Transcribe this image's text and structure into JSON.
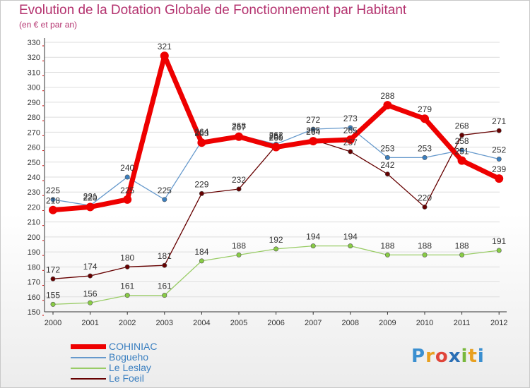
{
  "header": {
    "title": "Evolution de la Dotation Globale de Fonctionnement par Habitant",
    "subtitle": "(en € et par an)"
  },
  "logo": {
    "text": "Proxiti",
    "letters": [
      "P",
      "r",
      "o",
      "x",
      "i",
      "t",
      "i"
    ]
  },
  "colors": {
    "title": "#b4336f",
    "grid": "#dddddd",
    "axis": "#333333",
    "cohiniac": "#ee0000",
    "bogueho": "#6699cc",
    "lesleslay": "#99cc66",
    "lefoeil": "#660000"
  },
  "chart_data": {
    "type": "line",
    "x": [
      "2000",
      "2001",
      "2002",
      "2003",
      "2004",
      "2005",
      "2006",
      "2007",
      "2008",
      "2009",
      "2010",
      "2011",
      "2012"
    ],
    "ylim": [
      150,
      330
    ],
    "yticks": [
      150,
      160,
      170,
      180,
      190,
      200,
      210,
      220,
      230,
      240,
      250,
      260,
      270,
      280,
      290,
      300,
      310,
      320,
      330
    ],
    "grid": "horizontal",
    "legend_position": "bottom-left",
    "series": [
      {
        "name": "COHINIAC",
        "color": "#ee0000",
        "width": 7,
        "marker": "#ee0000",
        "values": [
          218,
          220,
          225,
          321,
          263,
          267,
          260,
          264,
          265,
          288,
          279,
          251,
          239
        ]
      },
      {
        "name": "Bogueho",
        "color": "#6699cc",
        "width": 1.3,
        "marker": "#3a7fc0",
        "values": [
          225,
          221,
          240,
          225,
          264,
          268,
          262,
          272,
          273,
          253,
          253,
          258,
          252
        ]
      },
      {
        "name": "Le Leslay",
        "color": "#99cc66",
        "width": 1.3,
        "marker": "#88cc44",
        "values": [
          155,
          156,
          161,
          161,
          184,
          188,
          192,
          194,
          194,
          188,
          188,
          188,
          191
        ]
      },
      {
        "name": "Le Foeil",
        "color": "#660000",
        "width": 1.3,
        "marker": "#660000",
        "values": [
          172,
          174,
          180,
          181,
          229,
          232,
          261,
          265,
          257,
          242,
          220,
          268,
          271
        ]
      }
    ]
  }
}
